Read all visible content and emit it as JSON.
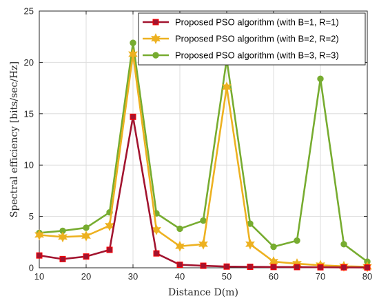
{
  "chart_data": {
    "type": "line",
    "xlabel": "Distance D(m)",
    "ylabel": "Spectral efficiency [bits/sec/Hz]",
    "xlim": [
      10,
      80
    ],
    "ylim": [
      0,
      25
    ],
    "xticks": [
      10,
      20,
      30,
      40,
      50,
      60,
      70,
      80
    ],
    "yticks": [
      0,
      5,
      10,
      15,
      20,
      25
    ],
    "grid": true,
    "legend_position": "top-right",
    "x": [
      10,
      15,
      20,
      25,
      30,
      35,
      40,
      45,
      50,
      55,
      60,
      65,
      70,
      75,
      80
    ],
    "series": [
      {
        "name": "Proposed PSO algorithm (with B=1, R=1)",
        "color": "#A2142F",
        "marker": "square",
        "values": [
          1.2,
          0.85,
          1.1,
          1.75,
          14.7,
          1.4,
          0.3,
          0.2,
          0.12,
          0.1,
          0.08,
          0.07,
          0.05,
          0.04,
          0.03
        ]
      },
      {
        "name": "Proposed PSO algorithm (with B=2, R=2)",
        "color": "#EDB120",
        "marker": "hexagram",
        "values": [
          3.2,
          3.0,
          3.1,
          4.1,
          20.8,
          3.7,
          2.1,
          2.3,
          17.6,
          2.3,
          0.6,
          0.4,
          0.25,
          0.15,
          0.1
        ]
      },
      {
        "name": "Proposed PSO algorithm (with B=3, R=3)",
        "color": "#77AC30",
        "marker": "circle",
        "values": [
          3.4,
          3.6,
          3.9,
          5.4,
          21.9,
          5.3,
          3.8,
          4.6,
          20.3,
          4.3,
          2.05,
          2.65,
          18.4,
          2.3,
          0.6
        ]
      }
    ]
  }
}
